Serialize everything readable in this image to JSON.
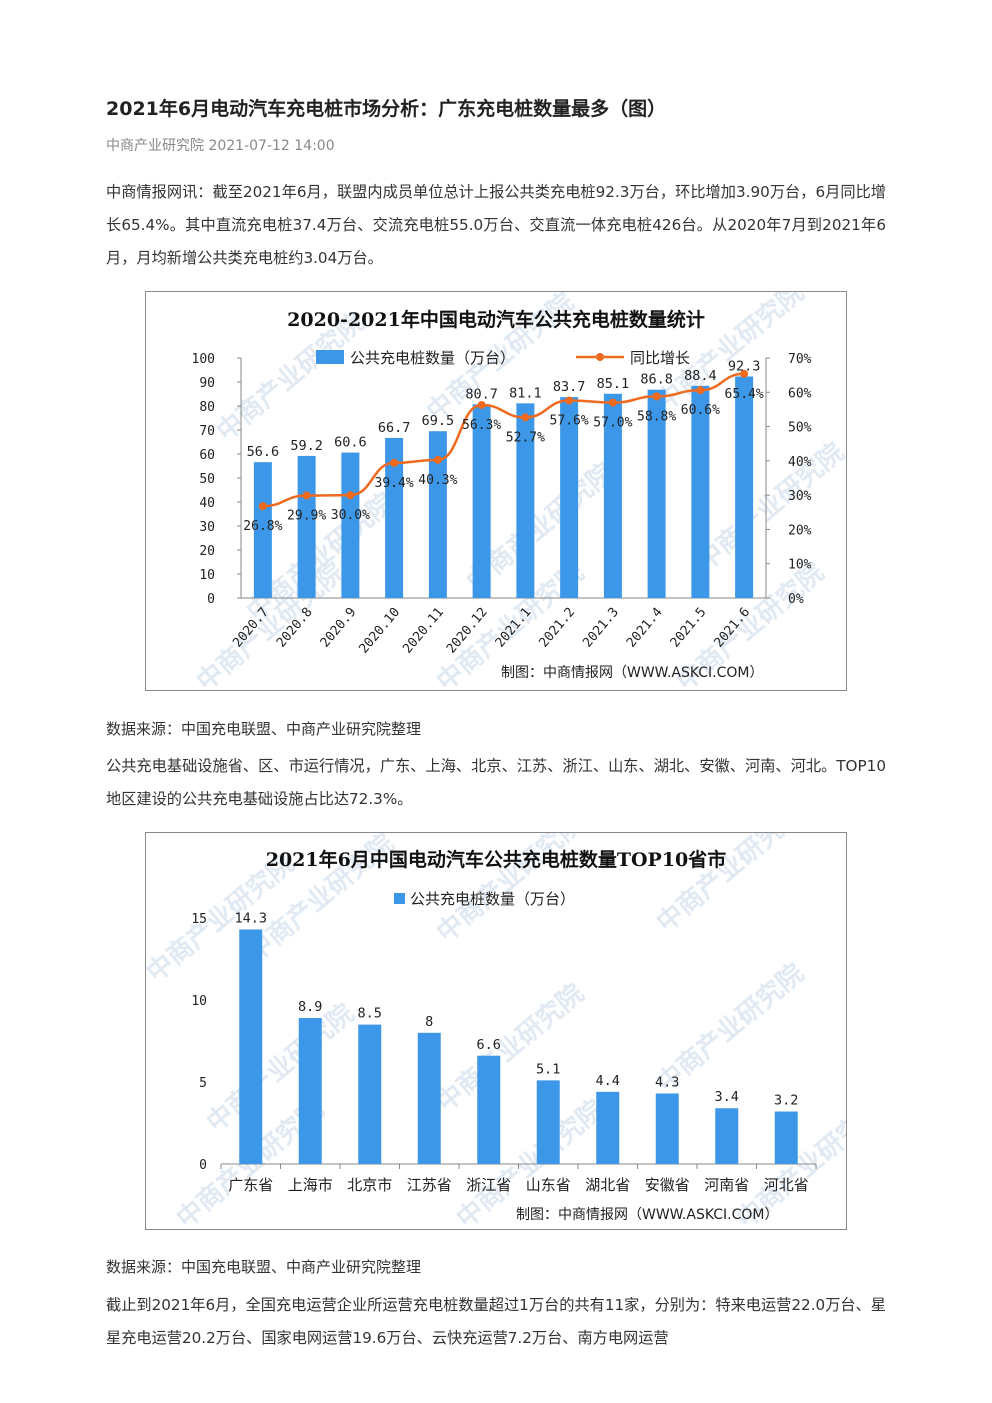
{
  "article": {
    "title": "2021年6月电动汽车充电桩市场分析：广东充电桩数量最多（图）",
    "meta": "中商产业研究院 2021-07-12 14:00",
    "para1": "中商情报网讯：截至2021年6月，联盟内成员单位总计上报公共类充电桩92.3万台，环比增加3.90万台，6月同比增长65.4%。其中直流充电桩37.4万台、交流充电桩55.0万台、交直流一体充电桩426台。从2020年7月到2021年6月，月均新增公共类充电桩约3.04万台。",
    "source1": "数据来源：中国充电联盟、中商产业研究院整理",
    "para2": "公共充电基础设施省、区、市运行情况，广东、上海、北京、江苏、浙江、山东、湖北、安徽、河南、河北。TOP10地区建设的公共充电基础设施占比达72.3%。",
    "source2": "数据来源：中国充电联盟、中商产业研究院整理",
    "para3": "截止到2021年6月，全国充电运营企业所运营充电桩数量超过1万台的共有11家，分别为：特来电运营22.0万台、星星充电运营20.2万台、国家电网运营19.6万台、云快充运营7.2万台、南方电网运营"
  },
  "watermark": "中商产业研究院",
  "chart_data": [
    {
      "type": "bar",
      "title": "2020-2021年中国电动汽车公共充电桩数量统计",
      "categories": [
        "2020.7",
        "2020.8",
        "2020.9",
        "2020.10",
        "2020.11",
        "2020.12",
        "2021.1",
        "2021.2",
        "2021.3",
        "2021.4",
        "2021.5",
        "2021.6"
      ],
      "series": [
        {
          "name": "公共充电桩数量（万台）",
          "type": "bar",
          "axis": "left",
          "values": [
            56.6,
            59.2,
            60.6,
            66.7,
            69.5,
            80.7,
            81.1,
            83.7,
            85.1,
            86.8,
            88.4,
            92.3
          ],
          "labels": [
            "56.6",
            "59.2",
            "60.6",
            "66.7",
            "69.5",
            "80.7",
            "81.1",
            "83.7",
            "85.1",
            "86.8",
            "88.4",
            "92.3"
          ]
        },
        {
          "name": "同比增长",
          "type": "line",
          "axis": "right",
          "values": [
            26.8,
            29.9,
            30.0,
            39.4,
            40.3,
            56.3,
            52.7,
            57.6,
            57.0,
            58.8,
            60.6,
            65.4
          ],
          "labels": [
            "26.8%",
            "29.9%",
            "30.0%",
            "39.4%",
            "40.3%",
            "56.3%",
            "52.7%",
            "57.6%",
            "57.0%",
            "58.8%",
            "60.6%",
            "65.4%"
          ]
        }
      ],
      "y_left": {
        "min": 0,
        "max": 100,
        "ticks": [
          "0",
          "10",
          "20",
          "30",
          "40",
          "50",
          "60",
          "70",
          "80",
          "90",
          "100"
        ]
      },
      "y_right": {
        "min": 0,
        "max": 70,
        "ticks": [
          "0%",
          "10%",
          "20%",
          "30%",
          "40%",
          "50%",
          "60%",
          "70%"
        ]
      },
      "legend_position": "top",
      "grid": false,
      "credit": "制图：中商情报网（WWW.ASKCI.COM）",
      "colors": {
        "bar": "#3d97e8",
        "line": "#ef6a1f"
      }
    },
    {
      "type": "bar",
      "title": "2021年6月中国电动汽车公共充电桩数量TOP10省市",
      "categories": [
        "广东省",
        "上海市",
        "北京市",
        "江苏省",
        "浙江省",
        "山东省",
        "湖北省",
        "安徽省",
        "河南省",
        "河北省"
      ],
      "series": [
        {
          "name": "公共充电桩数量（万台）",
          "values": [
            14.3,
            8.9,
            8.5,
            8,
            6.6,
            5.1,
            4.4,
            4.3,
            3.4,
            3.2
          ],
          "labels": [
            "14.3",
            "8.9",
            "8.5",
            "8",
            "6.6",
            "5.1",
            "4.4",
            "4.3",
            "3.4",
            "3.2"
          ]
        }
      ],
      "y_left": {
        "min": 0,
        "max": 15,
        "ticks": [
          "0",
          "5",
          "10",
          "15"
        ]
      },
      "legend_position": "top",
      "grid": false,
      "credit": "制图：中商情报网（WWW.ASKCI.COM）",
      "colors": {
        "bar": "#3d97e8"
      }
    }
  ]
}
